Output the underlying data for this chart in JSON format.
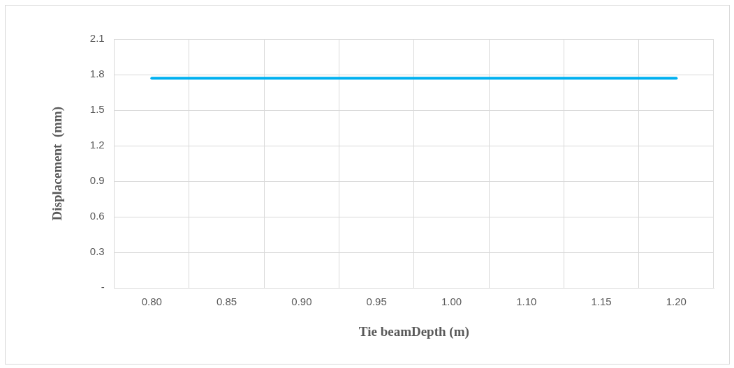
{
  "chart_data": {
    "type": "line",
    "xlabel": "Tie beamDepth (m)",
    "ylabel": "Displacement  (mm)",
    "categories": [
      "0.80",
      "0.85",
      "0.90",
      "0.95",
      "1.00",
      "1.10",
      "1.15",
      "1.20"
    ],
    "series": [
      {
        "color": "#00b0f0",
        "values": [
          1.77,
          1.77,
          1.77,
          1.77,
          1.77,
          1.77,
          1.77,
          1.77
        ]
      }
    ],
    "ylim": [
      0,
      2.1
    ],
    "yticks": [
      {
        "value": 0,
        "label": "-"
      },
      0.3,
      0.6,
      0.9,
      1.2,
      1.5,
      1.8,
      2.1
    ],
    "grid": true,
    "legend": false,
    "marker": "none",
    "line_style": "solid"
  }
}
